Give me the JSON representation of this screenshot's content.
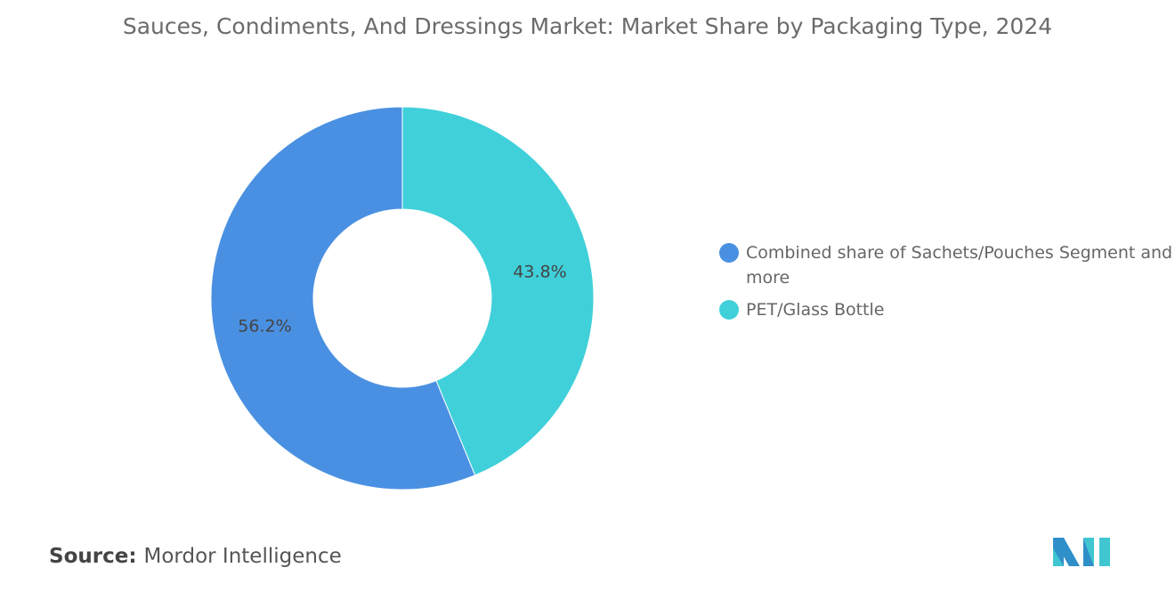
{
  "chart_data": {
    "type": "pie",
    "title": "Sauces, Condiments, And Dressings Market: Market Share by Packaging Type, 2024",
    "donut": true,
    "categories": [
      "Combined share of Sachets/Pouches Segment and more",
      "PET/Glass Bottle"
    ],
    "values": [
      56.2,
      43.8
    ],
    "labels": [
      "56.2%",
      "43.8%"
    ],
    "colors": [
      "#4a90e2",
      "#40d0da"
    ],
    "legend_position": "right"
  },
  "source": {
    "label": "Source:",
    "value": "Mordor Intelligence"
  },
  "logo_text": "Mordor Intelligence"
}
